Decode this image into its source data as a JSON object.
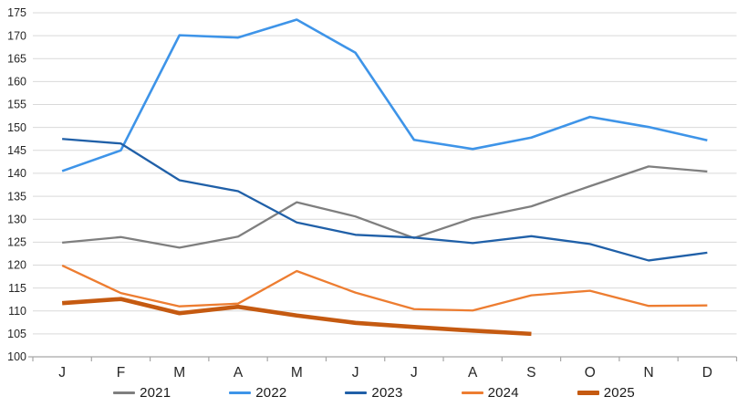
{
  "chart_data": {
    "type": "line",
    "title": "",
    "xlabel": "",
    "ylabel": "",
    "grid": true,
    "x_categories": [
      "J",
      "F",
      "M",
      "A",
      "M",
      "J",
      "J",
      "A",
      "S",
      "O",
      "N",
      "D"
    ],
    "y_axis": {
      "min": 100,
      "max": 175,
      "step": 5,
      "tick_labels": [
        "100",
        "105",
        "110",
        "115",
        "120",
        "125",
        "130",
        "135",
        "140",
        "145",
        "150",
        "155",
        "160",
        "165",
        "170",
        "175"
      ]
    },
    "series": [
      {
        "name": "2021",
        "color": "#7F7F7F",
        "line_width": 2.3,
        "values": [
          124.9,
          126.1,
          123.8,
          126.2,
          133.7,
          130.6,
          125.9,
          130.2,
          132.8,
          137.2,
          141.5,
          140.4
        ]
      },
      {
        "name": "2022",
        "color": "#3E94E8",
        "line_width": 2.6,
        "values": [
          140.5,
          145.0,
          170.1,
          169.6,
          173.5,
          166.3,
          147.3,
          145.3,
          147.8,
          152.3,
          150.1,
          147.2
        ]
      },
      {
        "name": "2023",
        "color": "#2060A8",
        "line_width": 2.3,
        "values": [
          147.5,
          146.5,
          138.5,
          136.1,
          129.3,
          126.6,
          126.0,
          124.8,
          126.3,
          124.6,
          121.0,
          122.7
        ]
      },
      {
        "name": "2024",
        "color": "#ED7D31",
        "line_width": 2.3,
        "values": [
          119.9,
          113.9,
          111.0,
          111.6,
          118.7,
          114.0,
          110.4,
          110.1,
          113.4,
          114.4,
          111.1,
          111.2
        ]
      },
      {
        "name": "2025",
        "color": "#C55A11",
        "line_width": 4.6,
        "values": [
          111.7,
          112.6,
          109.5,
          110.9,
          109.0,
          107.4,
          106.5,
          105.7,
          105.0
        ]
      }
    ],
    "legend": {
      "position": "bottom",
      "entries": [
        "2021",
        "2022",
        "2023",
        "2024",
        "2025"
      ]
    },
    "colors": {
      "gridline": "#D9D9D9",
      "axis_line": "#A6A6A6",
      "tick_label": "#262626"
    }
  }
}
